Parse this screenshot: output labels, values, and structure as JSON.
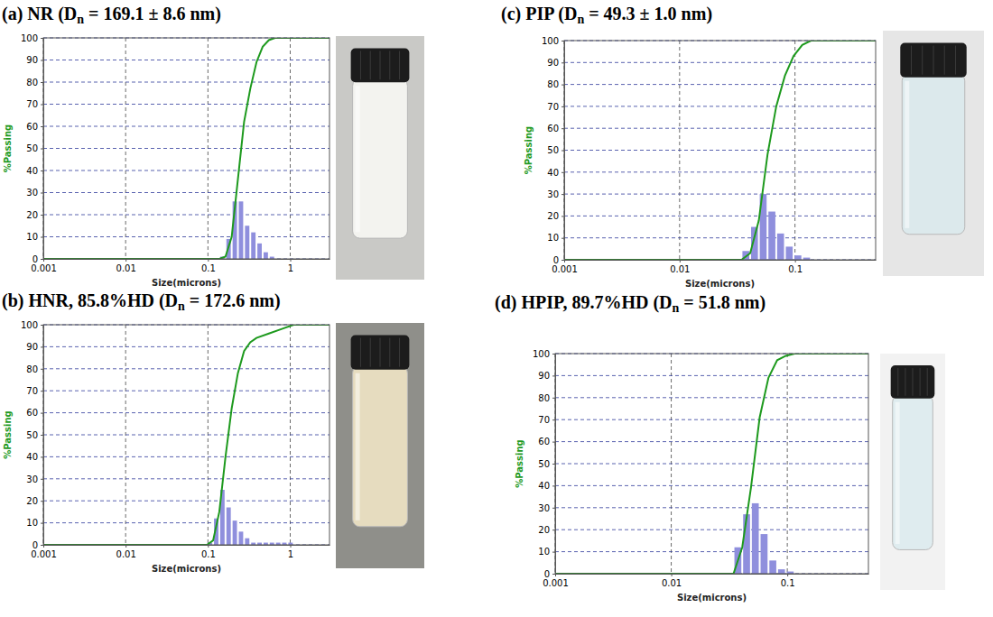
{
  "chart_data": [
    {
      "type": "histogram",
      "title": "(a) NR (Dn = 169.1 ± 8.6 nm)",
      "x_label": "Size(microns)",
      "y_label": "%Passing",
      "log": "x",
      "grid": true,
      "xlim": [
        0.001,
        3
      ],
      "xticks": [
        0.001,
        0.01,
        0.1,
        1
      ],
      "ylim": [
        0,
        100
      ],
      "yticks": [
        0,
        10,
        20,
        30,
        40,
        50,
        60,
        70,
        80,
        90,
        100
      ],
      "bins": [
        0.1375,
        0.1635,
        0.1944,
        0.2312,
        0.275,
        0.327,
        0.3889,
        0.4625,
        0.55,
        0.6541
      ],
      "series": [
        {
          "type": "bar",
          "color": "#8f8fdd",
          "values": [
            1,
            9,
            26,
            26,
            15,
            12,
            7,
            3,
            1
          ]
        },
        {
          "type": "line",
          "color": "#1e9a1e",
          "x": [
            0.001,
            0.1375,
            0.1635,
            0.1944,
            0.2312,
            0.275,
            0.327,
            0.3889,
            0.4625,
            0.55,
            0.6541,
            3
          ],
          "values": [
            0,
            0,
            1,
            10,
            36,
            62,
            77,
            89,
            96,
            99,
            100,
            100
          ]
        }
      ]
    },
    {
      "type": "histogram",
      "title": "(b) HNR, 85.8%HD (Dn = 172.6 nm)",
      "x_label": "Size(microns)",
      "y_label": "%Passing",
      "log": "x",
      "grid": true,
      "xlim": [
        0.001,
        3
      ],
      "xticks": [
        0.001,
        0.01,
        0.1,
        1
      ],
      "ylim": [
        0,
        100
      ],
      "yticks": [
        0,
        10,
        20,
        30,
        40,
        50,
        60,
        70,
        80,
        90,
        100
      ],
      "bins": [
        0.0972,
        0.1156,
        0.1375,
        0.1635,
        0.1944,
        0.2312,
        0.275,
        0.327,
        0.3889,
        0.4625,
        0.55,
        0.6541,
        0.7778,
        0.925,
        1.1
      ],
      "series": [
        {
          "type": "bar",
          "color": "#8f8fdd",
          "values": [
            1,
            12,
            25,
            17,
            11,
            6,
            3,
            1,
            1,
            1,
            1,
            1,
            1,
            1
          ]
        },
        {
          "type": "line",
          "color": "#1e9a1e",
          "x": [
            0.001,
            0.0972,
            0.1156,
            0.1375,
            0.1635,
            0.1944,
            0.2312,
            0.275,
            0.327,
            0.3889,
            0.55,
            0.7778,
            1.1,
            3
          ],
          "values": [
            0,
            0,
            2,
            15,
            40,
            62,
            78,
            88,
            92,
            94,
            96,
            98,
            100,
            100
          ]
        }
      ]
    },
    {
      "type": "histogram",
      "title": "(c) PIP (Dn = 49.3 ± 1.0 nm)",
      "x_label": "Size(microns)",
      "y_label": "%Passing",
      "log": "x",
      "grid": true,
      "xlim": [
        0.001,
        0.5
      ],
      "xticks": [
        0.001,
        0.01,
        0.1
      ],
      "ylim": [
        0,
        100
      ],
      "yticks": [
        0,
        10,
        20,
        30,
        40,
        50,
        60,
        70,
        80,
        90,
        100
      ],
      "bins": [
        0.0344,
        0.0409,
        0.0486,
        0.0578,
        0.0688,
        0.0818,
        0.0972,
        0.1156,
        0.1375
      ],
      "series": [
        {
          "type": "bar",
          "color": "#8f8fdd",
          "values": [
            4,
            15,
            30,
            22,
            12,
            6,
            2,
            1
          ]
        },
        {
          "type": "line",
          "color": "#1e9a1e",
          "x": [
            0.001,
            0.0344,
            0.0409,
            0.0486,
            0.0578,
            0.0688,
            0.0818,
            0.0972,
            0.1156,
            0.1375,
            0.5
          ],
          "values": [
            0,
            0,
            3,
            18,
            48,
            70,
            84,
            93,
            98,
            100,
            100
          ]
        }
      ]
    },
    {
      "type": "histogram",
      "title": "(d) HPIP, 89.7%HD (Dn = 51.8 nm)",
      "x_label": "Size(microns)",
      "y_label": "%Passing",
      "log": "x",
      "grid": true,
      "xlim": [
        0.001,
        0.5
      ],
      "xticks": [
        0.001,
        0.01,
        0.1
      ],
      "ylim": [
        0,
        100
      ],
      "yticks": [
        0,
        10,
        20,
        30,
        40,
        50,
        60,
        70,
        80,
        90,
        100
      ],
      "bins": [
        0.0344,
        0.0409,
        0.0486,
        0.0578,
        0.0688,
        0.0818,
        0.0972,
        0.1156
      ],
      "series": [
        {
          "type": "bar",
          "color": "#8f8fdd",
          "values": [
            12,
            27,
            32,
            18,
            6,
            2,
            1
          ]
        },
        {
          "type": "line",
          "color": "#1e9a1e",
          "x": [
            0.001,
            0.0344,
            0.0409,
            0.0486,
            0.0578,
            0.0688,
            0.0818,
            0.0972,
            0.1156,
            0.5
          ],
          "values": [
            0,
            0,
            12,
            39,
            71,
            89,
            97,
            99,
            100,
            100
          ]
        }
      ]
    }
  ]
}
